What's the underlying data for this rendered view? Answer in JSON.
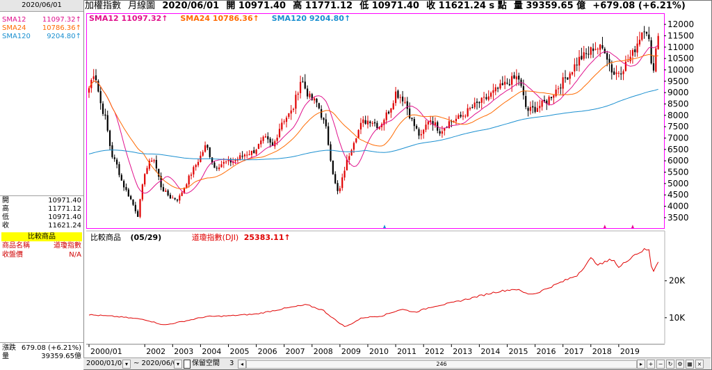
{
  "left_panel": {
    "date": "2020/06/01",
    "sma": [
      {
        "name": "SMA12",
        "value": "11097.32↑",
        "color": "#e0108c"
      },
      {
        "name": "SMA24",
        "value": "10786.36↑",
        "color": "#ff6a00"
      },
      {
        "name": "SMA120",
        "value": "9204.80↑",
        "color": "#1a8fd0"
      }
    ],
    "ohlc": [
      {
        "name": "開",
        "value": "10971.40"
      },
      {
        "name": "高",
        "value": "11771.12"
      },
      {
        "name": "低",
        "value": "10971.40"
      },
      {
        "name": "收",
        "value": "11621.24"
      }
    ],
    "compare_header": "比較商品",
    "compare_rows": [
      {
        "name": "商品名稱",
        "value": "道瓊指數"
      },
      {
        "name": "收盤價",
        "value": "N/A"
      }
    ],
    "bottom": [
      {
        "name": "漲跌",
        "value": "679.08 (+6.21%)"
      },
      {
        "name": "量",
        "value": "39359.65億"
      }
    ]
  },
  "header": {
    "symbol": "加權指數",
    "period": "月線圖",
    "date": "2020/06/01",
    "open": "開 10971.40",
    "high": "高 11771.12",
    "low": "低 10971.40",
    "close": "收 11621.24 s 點",
    "volume": "量 39359.65 億",
    "change": "+679.08 (+6.21%)"
  },
  "sma_legend": [
    {
      "label": "SMA12 11097.32↑",
      "color": "#e0108c"
    },
    {
      "label": "SMA24 10786.36↑",
      "color": "#ff6a00"
    },
    {
      "label": "SMA120 9204.80↑",
      "color": "#1a8fd0"
    }
  ],
  "compare_legend": {
    "title": "比較商品",
    "date": "(05/29)",
    "series": "道瓊指數(DJI)",
    "value": "25383.11↑"
  },
  "toolbar": {
    "start_date": "2000/01/04",
    "end_date": "~ 2020/06/01",
    "keep_space": "保留空間",
    "keep_space_value": "3",
    "count": "246"
  },
  "colors": {
    "up": "#e00000",
    "down": "#000000",
    "sma12": "#e0108c",
    "sma24": "#ff6a00",
    "sma120": "#1a8fd0",
    "dji": "#e00000",
    "border": "#ff00ff"
  },
  "chart_data": [
    {
      "type": "candlestick",
      "title": "加權指數 月線圖",
      "x_labels": [
        "2000/01",
        "2002",
        "2003",
        "2004",
        "2005",
        "2006",
        "2007",
        "2008",
        "2009",
        "2010",
        "2011",
        "2012",
        "2013",
        "2014",
        "2015",
        "2016",
        "2017",
        "2018",
        "2019"
      ],
      "y_ticks": [
        3500,
        4000,
        4500,
        5000,
        5500,
        6000,
        6500,
        7000,
        7500,
        8000,
        8500,
        9000,
        9500,
        10000,
        10500,
        11000,
        11500,
        12000
      ],
      "ylim": [
        3100,
        12400
      ],
      "anchors_close": [
        [
          2000.0,
          9200
        ],
        [
          2000.2,
          10000
        ],
        [
          2000.4,
          8600
        ],
        [
          2000.6,
          7800
        ],
        [
          2000.8,
          6300
        ],
        [
          2001.0,
          5800
        ],
        [
          2001.2,
          5000
        ],
        [
          2001.5,
          4300
        ],
        [
          2001.75,
          3600
        ],
        [
          2002.0,
          5500
        ],
        [
          2002.3,
          6200
        ],
        [
          2002.6,
          4800
        ],
        [
          2002.9,
          4400
        ],
        [
          2003.2,
          4300
        ],
        [
          2003.6,
          5300
        ],
        [
          2004.0,
          6200
        ],
        [
          2004.2,
          6700
        ],
        [
          2004.5,
          5700
        ],
        [
          2004.8,
          5900
        ],
        [
          2005.2,
          6000
        ],
        [
          2005.6,
          6300
        ],
        [
          2005.9,
          6400
        ],
        [
          2006.3,
          7000
        ],
        [
          2006.6,
          6600
        ],
        [
          2006.9,
          7700
        ],
        [
          2007.3,
          8200
        ],
        [
          2007.6,
          9600
        ],
        [
          2007.9,
          8800
        ],
        [
          2008.2,
          8500
        ],
        [
          2008.5,
          7400
        ],
        [
          2008.8,
          5100
        ],
        [
          2008.95,
          4500
        ],
        [
          2009.2,
          5800
        ],
        [
          2009.5,
          6900
        ],
        [
          2009.8,
          7700
        ],
        [
          2010.1,
          7800
        ],
        [
          2010.4,
          7500
        ],
        [
          2010.8,
          8300
        ],
        [
          2011.0,
          9000
        ],
        [
          2011.3,
          8700
        ],
        [
          2011.6,
          7700
        ],
        [
          2011.9,
          7000
        ],
        [
          2012.2,
          7900
        ],
        [
          2012.6,
          7300
        ],
        [
          2012.9,
          7700
        ],
        [
          2013.3,
          7900
        ],
        [
          2013.8,
          8400
        ],
        [
          2014.2,
          8700
        ],
        [
          2014.6,
          9100
        ],
        [
          2015.1,
          9500
        ],
        [
          2015.4,
          9700
        ],
        [
          2015.7,
          8200
        ],
        [
          2016.0,
          8300
        ],
        [
          2016.4,
          8600
        ],
        [
          2016.8,
          9200
        ],
        [
          2017.2,
          9800
        ],
        [
          2017.6,
          10500
        ],
        [
          2017.9,
          10700
        ],
        [
          2018.1,
          11000
        ],
        [
          2018.5,
          10900
        ],
        [
          2018.8,
          9800
        ],
        [
          2019.1,
          10000
        ],
        [
          2019.5,
          10700
        ],
        [
          2019.9,
          11900
        ],
        [
          2020.05,
          11700
        ],
        [
          2020.2,
          9700
        ],
        [
          2020.33,
          10900
        ],
        [
          2020.42,
          11621
        ]
      ]
    },
    {
      "type": "line",
      "series_name": "道瓊指數(DJI)",
      "y_ticks_labels": [
        "10K",
        "20K"
      ],
      "y_ticks": [
        10000,
        20000
      ],
      "ylim": [
        3000,
        32000
      ],
      "anchors": [
        [
          2000.0,
          10800
        ],
        [
          2001.0,
          10300
        ],
        [
          2002.0,
          9500
        ],
        [
          2002.7,
          8000
        ],
        [
          2003.5,
          9200
        ],
        [
          2004.2,
          10300
        ],
        [
          2005.0,
          10500
        ],
        [
          2006.0,
          11000
        ],
        [
          2007.0,
          12500
        ],
        [
          2007.8,
          13500
        ],
        [
          2008.4,
          12000
        ],
        [
          2008.9,
          9000
        ],
        [
          2009.2,
          7500
        ],
        [
          2009.8,
          10000
        ],
        [
          2010.5,
          10500
        ],
        [
          2011.2,
          12300
        ],
        [
          2011.7,
          11500
        ],
        [
          2012.3,
          13000
        ],
        [
          2013.0,
          14000
        ],
        [
          2013.8,
          15500
        ],
        [
          2014.6,
          17000
        ],
        [
          2015.3,
          17800
        ],
        [
          2015.7,
          16500
        ],
        [
          2016.0,
          16500
        ],
        [
          2016.9,
          19500
        ],
        [
          2017.5,
          21500
        ],
        [
          2018.0,
          26000
        ],
        [
          2018.3,
          24300
        ],
        [
          2018.8,
          26000
        ],
        [
          2019.0,
          23500
        ],
        [
          2019.5,
          26800
        ],
        [
          2019.95,
          28500
        ],
        [
          2020.1,
          28200
        ],
        [
          2020.2,
          22000
        ],
        [
          2020.42,
          25383
        ]
      ]
    }
  ]
}
